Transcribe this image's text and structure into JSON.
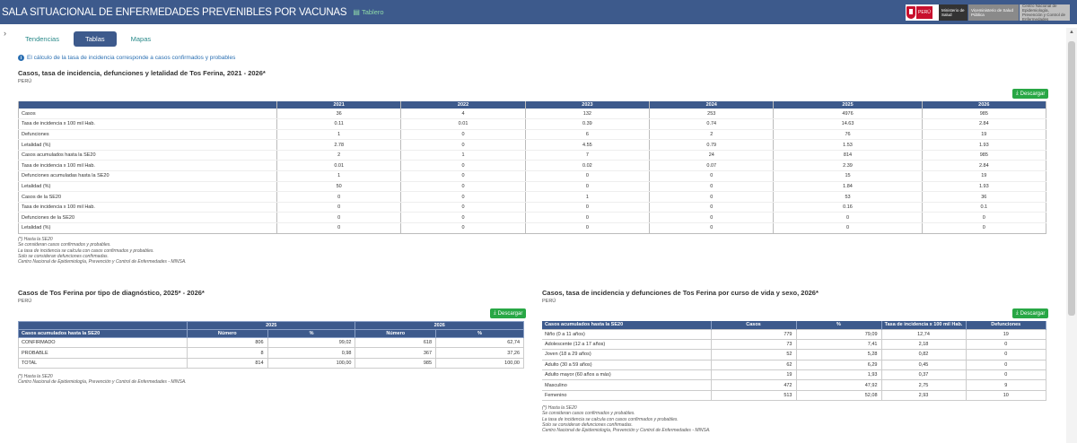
{
  "header": {
    "title": "SALA SITUACIONAL DE ENFERMEDADES PREVENIBLES POR VACUNAS",
    "dashboard_link": "Tablero",
    "logos": {
      "peru": "PERÚ",
      "minsa": "Ministerio de Salud",
      "vice": "Viceministerio de Salud Pública",
      "cdc": "Centro Nacional de Epidemiología, Prevención y Control de Enfermedades"
    },
    "colors": {
      "bar": "#3d5a8c",
      "accent": "#28a745",
      "peru_red": "#c8102e"
    }
  },
  "tabs": [
    {
      "label": "Tendencias",
      "active": false
    },
    {
      "label": "Tablas",
      "active": true
    },
    {
      "label": "Mapas",
      "active": false
    }
  ],
  "info_note": "El cálculo de la tasa de incidencia corresponde a casos confirmados y probables",
  "download_label": "Descargar",
  "table1": {
    "title": "Casos, tasa de incidencia, defunciones y letalidad de Tos Ferina, 2021 - 2026*",
    "subtitle": "PERÚ",
    "headers": [
      "",
      "2021",
      "2022",
      "2023",
      "2024",
      "2025",
      "2026"
    ],
    "rows": [
      [
        "Casos",
        "36",
        "4",
        "132",
        "253",
        "4976",
        "985"
      ],
      [
        "Tasa de incidencia x 100 mil Hab.",
        "0.11",
        "0.01",
        "0.39",
        "0.74",
        "14.63",
        "2.84"
      ],
      [
        "Defunciones",
        "1",
        "0",
        "6",
        "2",
        "76",
        "19"
      ],
      [
        "Letalidad (%)",
        "2.78",
        "0",
        "4.55",
        "0.79",
        "1.53",
        "1.93"
      ],
      [
        "Casos acumulados hasta la SE20",
        "2",
        "1",
        "7",
        "24",
        "814",
        "985"
      ],
      [
        "Tasa de incidencia x 100 mil Hab.",
        "0.01",
        "0",
        "0.02",
        "0.07",
        "2.39",
        "2.84"
      ],
      [
        "Defunciones acumuladas hasta la SE20",
        "1",
        "0",
        "0",
        "0",
        "15",
        "19"
      ],
      [
        "Letalidad (%)",
        "50",
        "0",
        "0",
        "0",
        "1.84",
        "1.93"
      ],
      [
        "Casos de la SE20",
        "0",
        "0",
        "1",
        "0",
        "53",
        "36"
      ],
      [
        "Tasa de incidencia x 100 mil Hab.",
        "0",
        "0",
        "0",
        "0",
        "0.16",
        "0.1"
      ],
      [
        "Defunciones de la SE20",
        "0",
        "0",
        "0",
        "0",
        "0",
        "0"
      ],
      [
        "Letalidad (%)",
        "0",
        "0",
        "0",
        "0",
        "0",
        "0"
      ]
    ],
    "footnotes": [
      "(*) Hasta la SE20",
      "Se consideran casos confirmados y probables.",
      "La tasa de incidencia se calcula con casos confirmados y probables.",
      "Solo se consideran defunciones confirmadas.",
      "Centro Nacional de Epidemiología, Prevención y Control de Enfermedades - MINSA."
    ]
  },
  "table2": {
    "title": "Casos de Tos Ferina por tipo de diagnóstico, 2025* - 2026*",
    "subtitle": "PERÚ",
    "row_header": "Casos acumulados hasta la SE20",
    "years": [
      "2025",
      "2026"
    ],
    "subheaders": [
      "Número",
      "%",
      "Número",
      "%"
    ],
    "rows": [
      [
        "CONFIRMADO",
        "806",
        "99,02",
        "618",
        "62,74"
      ],
      [
        "PROBABLE",
        "8",
        "0,98",
        "367",
        "37,26"
      ],
      [
        "TOTAL",
        "814",
        "100,00",
        "985",
        "100,00"
      ]
    ],
    "footnotes": [
      "(*) Hasta la SE20",
      "Centro Nacional de Epidemiología, Prevención y Control de Enfermedades - MINSA."
    ]
  },
  "table3": {
    "title": "Casos, tasa de incidencia y defunciones de Tos Ferina por curso de vida y sexo, 2026*",
    "subtitle": "PERÚ",
    "headers": [
      "Casos acumulados hasta la SE20",
      "Casos",
      "%",
      "Tasa de incidencia x 100 mil Hab.",
      "Defunciones"
    ],
    "rows": [
      [
        "Niño (0 a 11 años)",
        "779",
        "79,09",
        "12,74",
        "19"
      ],
      [
        "Adolescente (12 a 17 años)",
        "73",
        "7,41",
        "2,18",
        "0"
      ],
      [
        "Joven (18 a 29 años)",
        "52",
        "5,28",
        "0,82",
        "0"
      ],
      [
        "Adulto (30 a 59 años)",
        "62",
        "6,29",
        "0,45",
        "0"
      ],
      [
        "Adulto mayor (60 años a más)",
        "19",
        "1,93",
        "0,37",
        "0"
      ],
      [
        "Masculino",
        "472",
        "47,92",
        "2,75",
        "9"
      ],
      [
        "Femenino",
        "513",
        "52,08",
        "2,93",
        "10"
      ]
    ],
    "footnotes": [
      "(*) Hasta la SE20",
      "Se consideran casos confirmados y probables.",
      "La tasa de incidencia se calcula con casos confirmados y probables.",
      "Solo se consideran defunciones confirmadas.",
      "Centro Nacional de Epidemiología, Prevención y Control de Enfermedades - MINSA."
    ]
  }
}
